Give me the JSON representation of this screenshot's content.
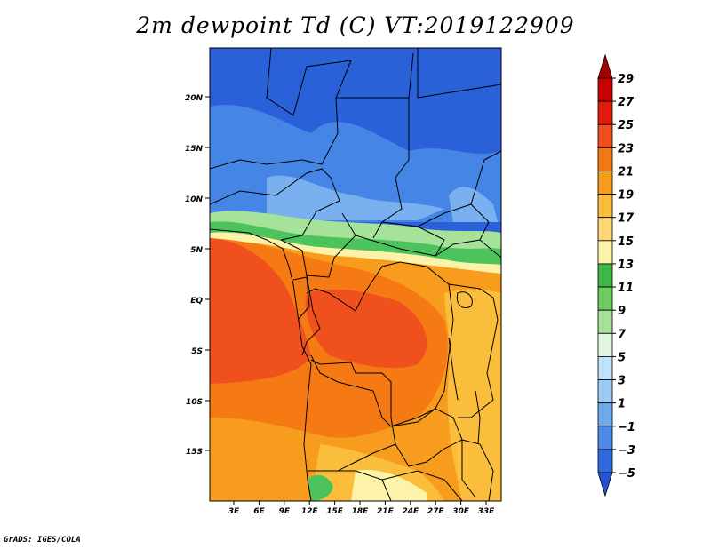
{
  "title": "2m dewpoint Td (C) VT:2019122909",
  "footer": "GrADS: IGES/COLA",
  "lat_labels": [
    "20N",
    "15N",
    "10N",
    "5N",
    "EQ",
    "5S",
    "10S",
    "15S"
  ],
  "lon_labels": [
    "3E",
    "6E",
    "9E",
    "12E",
    "15E",
    "18E",
    "21E",
    "24E",
    "27E",
    "30E",
    "33E"
  ],
  "colorbar": {
    "labels": [
      "29",
      "27",
      "25",
      "23",
      "21",
      "19",
      "17",
      "15",
      "13",
      "11",
      "9",
      "7",
      "5",
      "3",
      "1",
      "−1",
      "−3",
      "−5"
    ],
    "colors": [
      "#a50000",
      "#c80000",
      "#e11c0c",
      "#f0501e",
      "#f57a14",
      "#f89c1e",
      "#fbbd3c",
      "#fdd873",
      "#fdf3a8",
      "#3bb848",
      "#6ecc5e",
      "#a6e29a",
      "#e0f6e0",
      "#bfe3fb",
      "#9ccbf5",
      "#6fa9ee",
      "#4d8bea",
      "#2f6ae0",
      "#2453d6"
    ]
  },
  "map_colors": {
    "deep_blue": "#2a60d8",
    "mid_blue": "#4585e6",
    "light_blue": "#7ab0ef",
    "green": "#4cc35c",
    "light_green": "#a6e29a",
    "pale_yellow": "#fdf3a8",
    "light_orange": "#fbbd3c",
    "orange": "#f89c1e",
    "dark_orange": "#f57a14",
    "red_orange": "#f0501e"
  }
}
